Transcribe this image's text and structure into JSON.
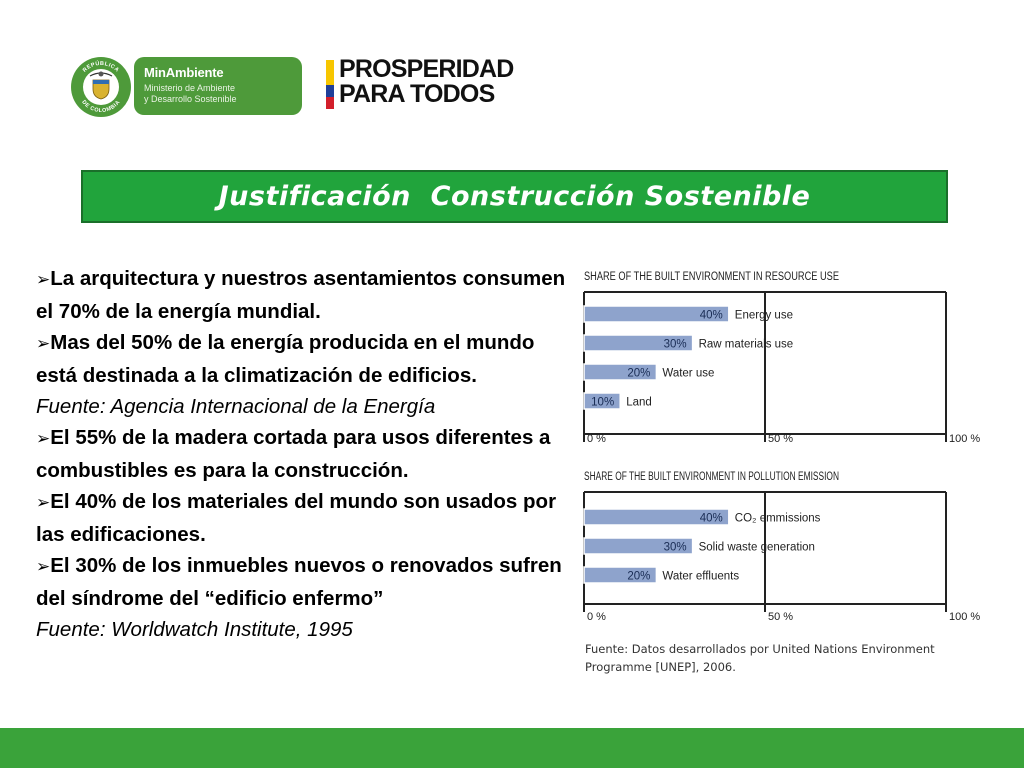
{
  "header": {
    "seal_text_top": "REPÚBLICA",
    "seal_text_bottom": "DE COLOMBIA",
    "minambiente": {
      "name": "MinAmbiente",
      "line1": "Ministerio de Ambiente",
      "line2": "y Desarrollo Sostenible"
    },
    "prosperidad": {
      "line1": "PROSPERIDAD",
      "line2": "PARA TODOS"
    }
  },
  "banner": {
    "title": "Justificación  Construcción Sostenible"
  },
  "body": {
    "bullet_glyph": "➢",
    "p1": "La arquitectura y nuestros asentamientos consumen el 70% de la energía mundial.",
    "p2": "Mas del 50% de la energía producida en el mundo está destinada a la climatización de edificios.",
    "source1": "Fuente: Agencia Internacional de la Energía",
    "p3": "El 55% de la madera cortada para usos diferentes a combustibles es para la construcción.",
    "p4": "El 40% de los materiales del mundo son usados por las edificaciones.",
    "p5": "El 30% de los inmuebles nuevos o renovados sufren del síndrome del “edificio enfermo”",
    "source2": "Fuente: Worldwatch Institute, 1995"
  },
  "chart_data": [
    {
      "type": "bar",
      "title": "SHARE OF THE BUILT ENVIRONMENT IN RESOURCE USE",
      "categories": [
        "Energy use",
        "Raw materials use",
        "Water use",
        "Land"
      ],
      "values": [
        40,
        30,
        20,
        10
      ],
      "value_labels": [
        "40%",
        "30%",
        "20%",
        "10%"
      ],
      "xlim": [
        0,
        100
      ],
      "x_ticks": [
        "0 %",
        "50 %",
        "100 %"
      ],
      "bar_color": "#8ea3cc"
    },
    {
      "type": "bar",
      "title": "SHARE OF THE BUILT ENVIRONMENT IN POLLUTION EMISSION",
      "categories": [
        "CO₂ emmissions",
        "Solid waste generation",
        "Water effluents"
      ],
      "values": [
        40,
        30,
        20
      ],
      "value_labels": [
        "40%",
        "30%",
        "20%"
      ],
      "xlim": [
        0,
        100
      ],
      "x_ticks": [
        "0 %",
        "50 %",
        "100 %"
      ],
      "bar_color": "#8ea3cc"
    }
  ],
  "chart_source": {
    "line1": "Fuente: Datos desarrollados por United Nations Environment",
    "line2": "Programme [UNEP], 2006."
  },
  "colors": {
    "banner": "#21a43c",
    "footer": "#3aa33a",
    "minambiente": "#4e9a3a",
    "flag_yellow": "#f7c600",
    "flag_blue": "#1f3f99",
    "flag_red": "#d21f2b"
  }
}
